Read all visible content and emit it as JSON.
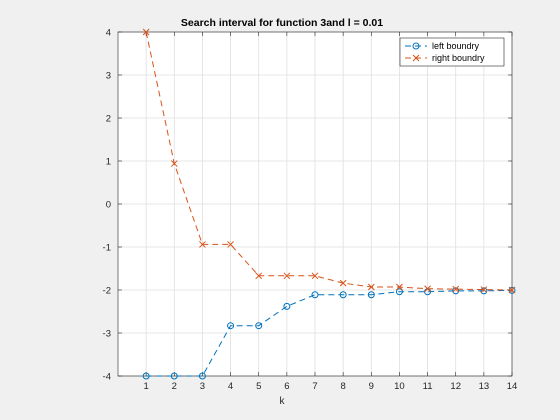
{
  "chart_data": {
    "type": "line",
    "title": "Search interval for function 3and l = 0.01",
    "xlabel": "k",
    "ylabel": "",
    "xlim": [
      0,
      14
    ],
    "ylim": [
      -4,
      4
    ],
    "xticks": [
      "1",
      "2",
      "3",
      "4",
      "5",
      "6",
      "7",
      "8",
      "9",
      "10",
      "11",
      "12",
      "13",
      "14"
    ],
    "yticks": [
      "-4",
      "-3",
      "-2",
      "-1",
      "0",
      "1",
      "2",
      "3",
      "4"
    ],
    "grid": true,
    "legend_position": "top-right",
    "x": [
      1,
      2,
      3,
      4,
      5,
      6,
      7,
      8,
      9,
      10,
      11,
      12,
      13,
      14
    ],
    "series": [
      {
        "name": "left boundry",
        "color": "#0072BD",
        "marker": "circle",
        "line_style": "dashed",
        "values": [
          -4,
          -4,
          -4,
          -2.83,
          -2.83,
          -2.38,
          -2.11,
          -2.11,
          -2.11,
          -2.04,
          -2.04,
          -2.02,
          -2.02,
          -2.01
        ]
      },
      {
        "name": "right boundry",
        "color": "#D95319",
        "marker": "x",
        "line_style": "dashed",
        "values": [
          4,
          0.94,
          -0.94,
          -0.94,
          -1.67,
          -1.67,
          -1.67,
          -1.84,
          -1.93,
          -1.93,
          -1.97,
          -1.98,
          -1.99,
          -2.0
        ]
      }
    ]
  }
}
